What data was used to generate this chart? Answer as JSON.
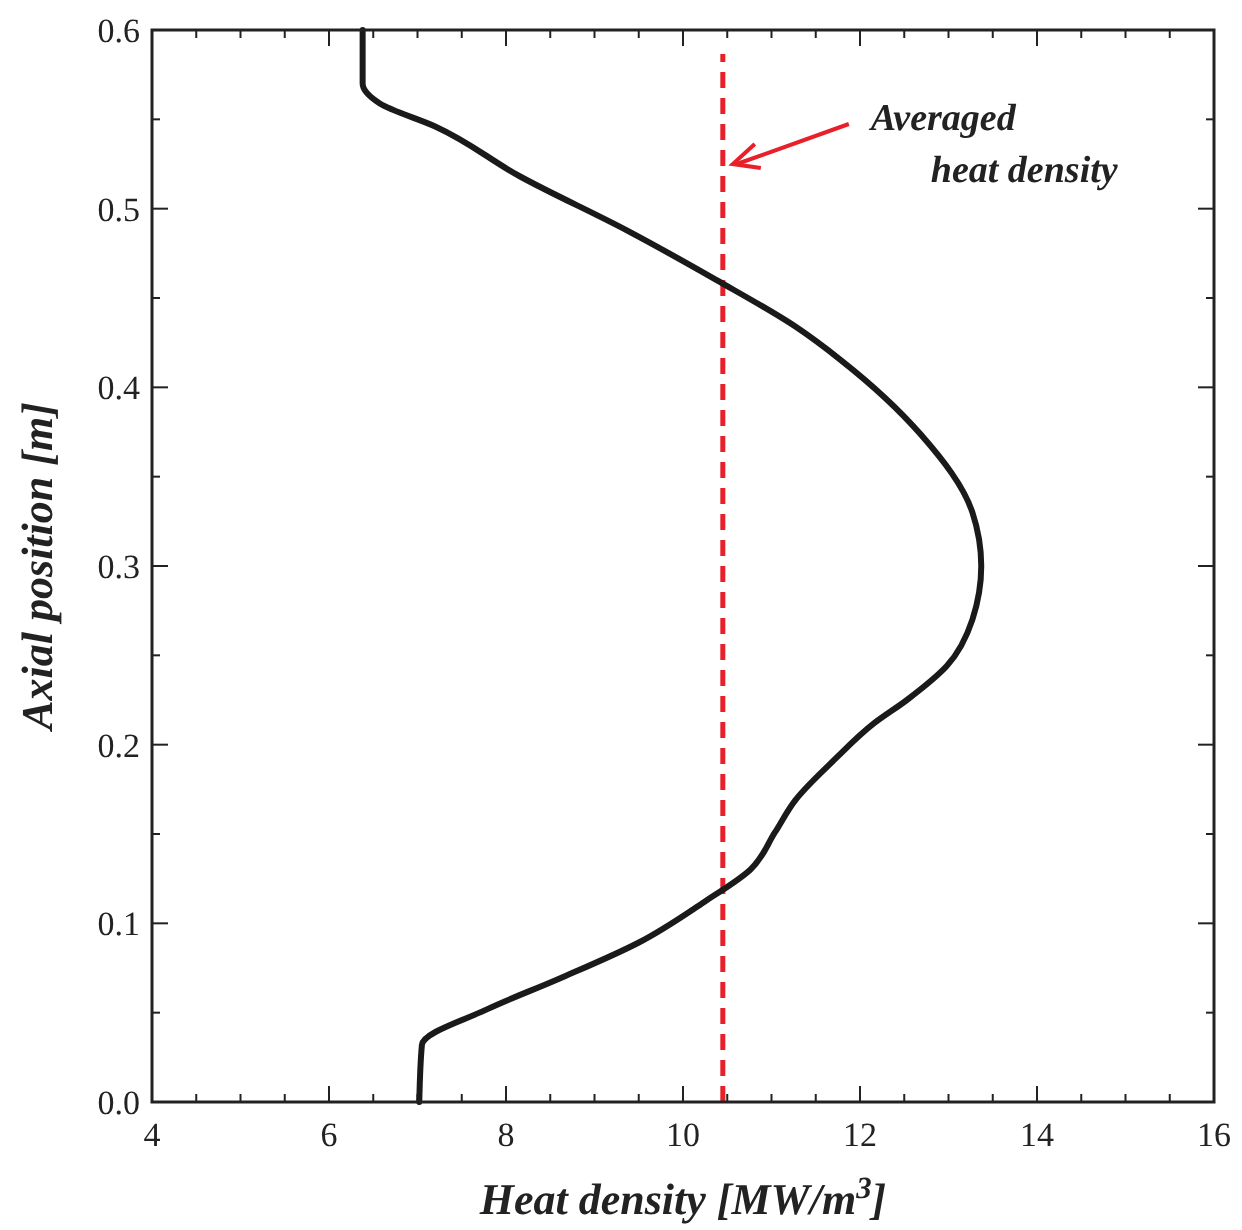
{
  "chart_data": {
    "type": "line",
    "xlabel": "Heat density [MW/m$^{3}$]",
    "ylabel": "Axial position [m]",
    "xlim": [
      4,
      16
    ],
    "ylim": [
      0,
      0.6
    ],
    "xticks": [
      4,
      {
        "value": 4.5,
        "label": null
      },
      6,
      {
        "value": 6.5,
        "label": null
      },
      8,
      {
        "value": 8.5,
        "label": null
      },
      10,
      {
        "value": 10.5,
        "label": null
      },
      12,
      {
        "value": 12.5,
        "label": null
      },
      14,
      {
        "value": 14.5,
        "label": null
      },
      16,
      {
        "value": 5,
        "label": null
      },
      {
        "value": 7,
        "label": null
      },
      {
        "value": 9,
        "label": null
      },
      {
        "value": 11,
        "label": null
      },
      {
        "value": 13,
        "label": null
      },
      {
        "value": 15,
        "label": null
      },
      {
        "value": 5.5,
        "label": null
      },
      {
        "value": 7.5,
        "label": null
      },
      {
        "value": 9.5,
        "label": null
      },
      {
        "value": 11.5,
        "label": null
      },
      {
        "value": 13.5,
        "label": null
      },
      {
        "value": 15.5,
        "label": null
      }
    ],
    "yticks": [
      {
        "value": 0,
        "label": "0.0"
      },
      0.1,
      0.2,
      0.3,
      0.4,
      0.5,
      0.6,
      {
        "value": 0.05,
        "label": null
      },
      {
        "value": 0.15,
        "label": null
      },
      {
        "value": 0.25,
        "label": null
      },
      {
        "value": 0.35,
        "label": null
      },
      {
        "value": 0.45,
        "label": null
      },
      {
        "value": 0.55,
        "label": null
      }
    ],
    "grid": false,
    "marker": "none",
    "line_style": "solid",
    "series": [
      {
        "color": "#1a1a1a",
        "x": [
          7.02,
          7.05,
          7.79,
          8.6,
          9.49,
          10.24,
          10.76,
          11.04,
          11.27,
          11.72,
          12.16,
          12.53,
          12.98,
          13.27,
          13.37,
          13.27,
          12.68,
          11.79,
          11.27,
          10.38,
          9.36,
          8.16,
          7.2,
          6.57,
          6.38,
          6.38
        ],
        "values": [
          0,
          0.032,
          0.052,
          0.069,
          0.089,
          0.112,
          0.13,
          0.151,
          0.169,
          0.192,
          0.212,
          0.225,
          0.244,
          0.27,
          0.3,
          0.33,
          0.374,
          0.415,
          0.434,
          0.46,
          0.488,
          0.518,
          0.546,
          0.559,
          0.57,
          0.6
        ]
      }
    ],
    "ref_lines": [
      {
        "axis": "x",
        "value": 10.45,
        "label": "Averaged heat density",
        "color": "#e8202a",
        "line_style": "dashed"
      }
    ]
  }
}
